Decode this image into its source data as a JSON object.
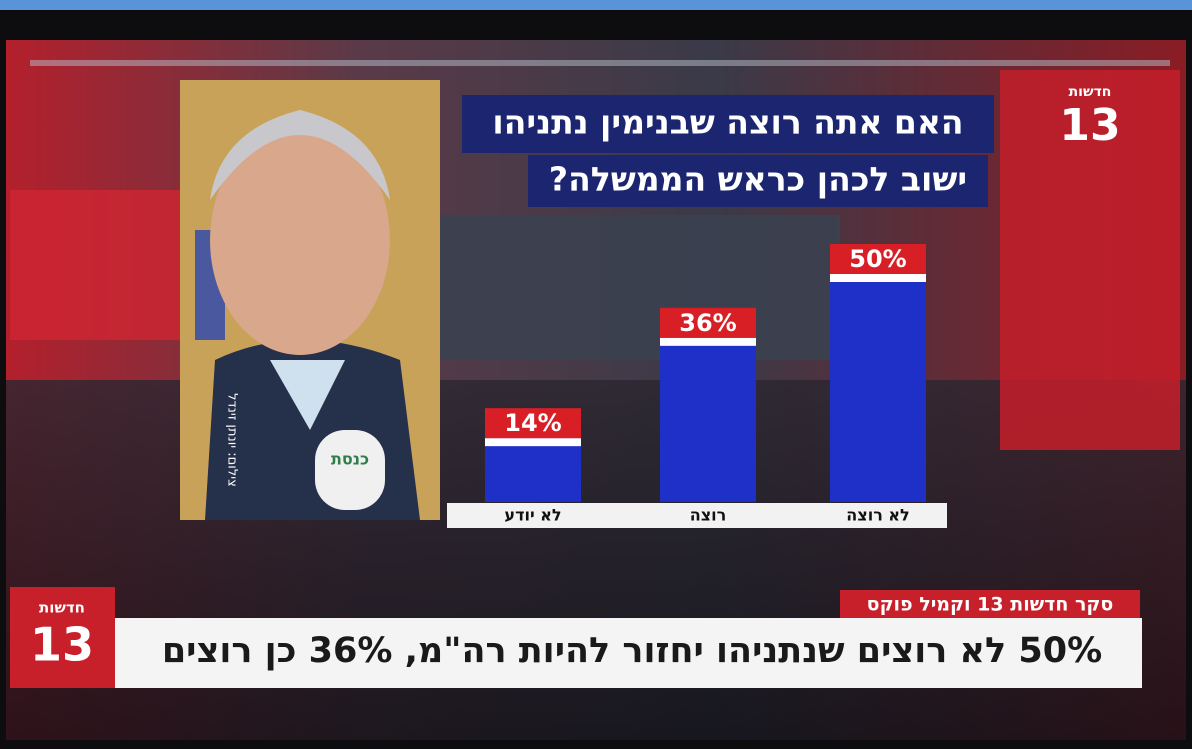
{
  "channel_logo": {
    "top": "חדשות",
    "number": "13"
  },
  "photo_credit": "צילום: יונתן זינדל",
  "mic_label": "כנסת",
  "chart_data": {
    "type": "bar",
    "title": [
      "האם אתה רוצה שבנימין נתניהו",
      "ישוב לכהן כראש הממשלה?"
    ],
    "categories": [
      "לא יודע",
      "רוצה",
      "לא רוצה"
    ],
    "values": [
      14,
      36,
      50
    ],
    "value_labels": [
      "14%",
      "36%",
      "50%"
    ],
    "color": "#1f30c8",
    "label_color": "#d81f26"
  },
  "ticker": {
    "source": "סקר חדשות 13 וקמיל פוקס",
    "headline": "50% לא רוצים שנתניהו יחזור להיות רה\"מ, 36% כן רוצים",
    "logo": {
      "top": "חדשות",
      "number": "13"
    }
  }
}
